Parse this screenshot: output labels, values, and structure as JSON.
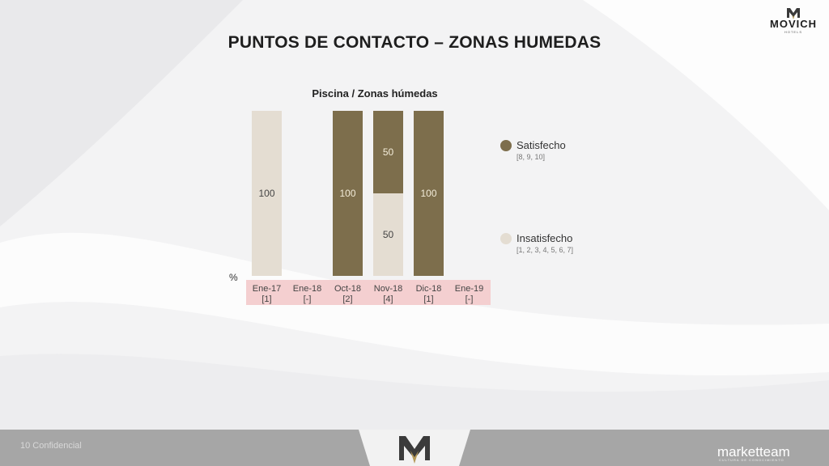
{
  "slide": {
    "title": "PUNTOS DE CONTACTO – ZONAS HUMEDAS",
    "logo": {
      "name": "MOVICH",
      "sub": "HOTELS"
    },
    "footer": {
      "page_text": "10          Confidencial",
      "brand": "marketteam",
      "brand_sub": "CULTURA DE CONOCIMIENTO"
    }
  },
  "colors": {
    "satisfecho": "#7d6e4c",
    "insatisfecho": "#e4ddd2",
    "category_band": "#f4cfd0",
    "footer": "#a6a6a6"
  },
  "chart_data": {
    "type": "bar",
    "stacked": true,
    "title": "Piscina / Zonas húmedas",
    "ylabel": "%",
    "ylim": [
      0,
      100
    ],
    "grid": false,
    "legend_position": "right",
    "categories": [
      "Ene-17",
      "Ene-18",
      "Oct-18",
      "Nov-18",
      "Dic-18",
      "Ene-19"
    ],
    "category_counts": [
      "[1]",
      "[-]",
      "[2]",
      "[4]",
      "[1]",
      "[-]"
    ],
    "series": [
      {
        "name": "Insatisfecho",
        "range": "[1, 2, 3, 4, 5, 6, 7]",
        "values": [
          100,
          null,
          null,
          50,
          null,
          null
        ]
      },
      {
        "name": "Satisfecho",
        "range": "[8, 9, 10]",
        "values": [
          null,
          null,
          100,
          50,
          100,
          null
        ]
      }
    ]
  }
}
